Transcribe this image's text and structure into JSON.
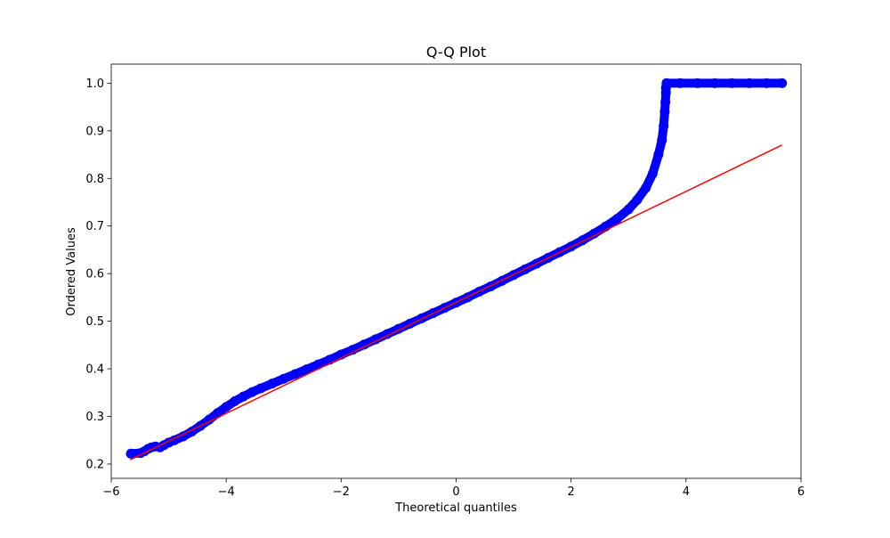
{
  "chart_data": {
    "type": "scatter",
    "title": "Q-Q Plot",
    "xlabel": "Theoretical quantiles",
    "ylabel": "Ordered Values",
    "xlim": [
      -6.0,
      6.0
    ],
    "ylim": [
      0.17,
      1.04
    ],
    "xticks": [
      -6,
      -4,
      -2,
      0,
      2,
      4,
      6
    ],
    "xtick_labels": [
      "−6",
      "−4",
      "−2",
      "0",
      "2",
      "4",
      "6"
    ],
    "yticks": [
      0.2,
      0.3,
      0.4,
      0.5,
      0.6,
      0.7,
      0.8,
      0.9,
      1.0
    ],
    "ytick_labels": [
      "0.2",
      "0.3",
      "0.4",
      "0.5",
      "0.6",
      "0.7",
      "0.8",
      "0.9",
      "1.0"
    ],
    "grid": false,
    "legend": "none",
    "series": [
      {
        "kind": "points",
        "color": "#0000ff",
        "x": [
          -5.66,
          -5.49,
          -5.42,
          -5.36,
          -5.3,
          -5.23,
          -5.15,
          -5.08,
          -5.0,
          -4.9,
          -4.75,
          -4.6,
          -4.45,
          -4.3,
          -4.15,
          -4.0,
          -3.85,
          -3.7,
          -3.55,
          -3.4,
          -3.2,
          -3.0,
          -2.8,
          -2.6,
          -2.4,
          -2.2,
          -2.0,
          -1.8,
          -1.6,
          -1.4,
          -1.2,
          -1.0,
          -0.8,
          -0.6,
          -0.4,
          -0.2,
          0.0,
          0.2,
          0.4,
          0.6,
          0.8,
          1.0,
          1.2,
          1.4,
          1.6,
          1.8,
          2.0,
          2.2,
          2.4,
          2.6,
          2.8,
          3.0,
          3.15,
          3.3,
          3.42,
          3.52,
          3.58,
          3.61,
          3.63,
          3.64,
          3.65,
          3.65,
          3.66,
          3.66,
          3.9,
          4.2,
          4.5,
          4.8,
          5.1,
          5.4,
          5.67
        ],
        "y": [
          0.222,
          0.223,
          0.227,
          0.232,
          0.235,
          0.237,
          0.235,
          0.24,
          0.245,
          0.25,
          0.258,
          0.268,
          0.28,
          0.293,
          0.307,
          0.32,
          0.332,
          0.342,
          0.351,
          0.359,
          0.369,
          0.379,
          0.389,
          0.399,
          0.409,
          0.419,
          0.43,
          0.44,
          0.451,
          0.462,
          0.473,
          0.484,
          0.495,
          0.506,
          0.517,
          0.528,
          0.539,
          0.55,
          0.562,
          0.573,
          0.585,
          0.597,
          0.609,
          0.621,
          0.633,
          0.645,
          0.657,
          0.67,
          0.684,
          0.699,
          0.715,
          0.735,
          0.755,
          0.78,
          0.81,
          0.85,
          0.88,
          0.91,
          0.94,
          0.96,
          0.98,
          0.99,
          0.995,
          1.0,
          1.0,
          1.0,
          1.0,
          1.0,
          1.0,
          1.0,
          1.0
        ]
      },
      {
        "kind": "line",
        "color": "#ff0000",
        "x": [
          -5.67,
          5.67
        ],
        "y": [
          0.209,
          0.87
        ]
      }
    ]
  }
}
